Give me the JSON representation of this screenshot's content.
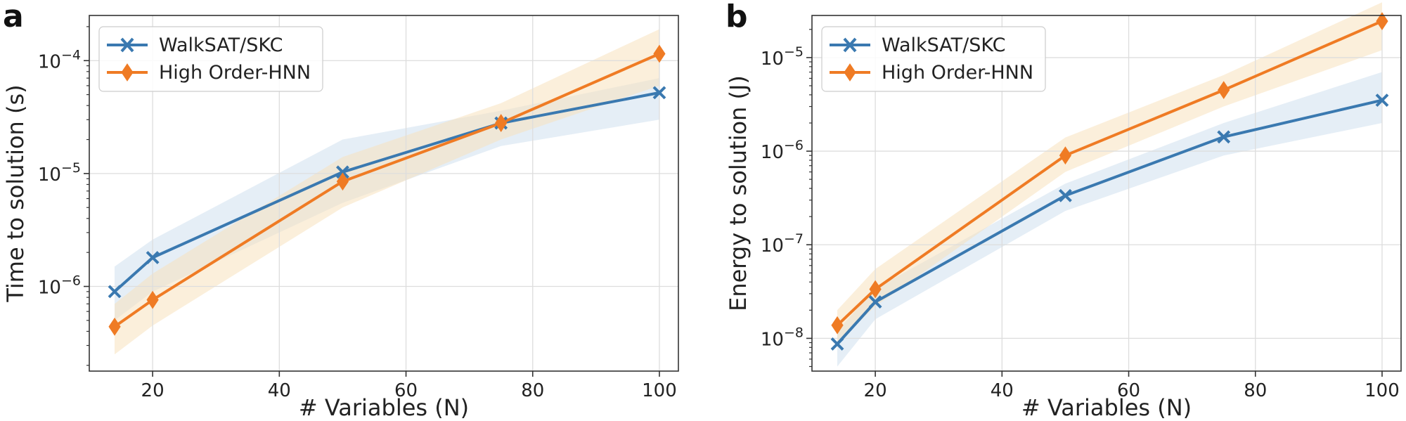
{
  "chart_data": [
    {
      "type": "line",
      "panel_label": "a",
      "title": "",
      "xlabel": "# Variables (N)",
      "ylabel": "Time to solution (s)",
      "yscale": "log",
      "xlim": [
        10,
        103
      ],
      "ylim_log10": [
        -6.75,
        -3.6
      ],
      "x_ticks": [
        20,
        40,
        60,
        80,
        100
      ],
      "x_tick_labels": [
        "20",
        "40",
        "60",
        "80",
        "100"
      ],
      "y_ticks_log10": [
        -6,
        -5,
        -4
      ],
      "y_tick_labels": [
        "10",
        "10",
        "10"
      ],
      "y_tick_exponents": [
        "−6",
        "−5",
        "−4"
      ],
      "grid": true,
      "legend_position": "top-left",
      "series": [
        {
          "name": "WalkSAT/SKC",
          "color": "#3a79b0",
          "band_color": "#cfe0ee",
          "marker": "x",
          "x": [
            14,
            20,
            50,
            75,
            100
          ],
          "y": [
            9e-07,
            1.8e-06,
            1.03e-05,
            2.8e-05,
            5.2e-05
          ],
          "y_lower": [
            5e-07,
            9e-07,
            5.5e-06,
            1.75e-05,
            3e-05
          ],
          "y_upper": [
            1.5e-06,
            2.6e-06,
            2e-05,
            3.6e-05,
            7e-05
          ]
        },
        {
          "name": "High Order-HNN",
          "color": "#ef7b24",
          "band_color": "#f8e1bd",
          "marker": "diamond",
          "x": [
            14,
            20,
            50,
            75,
            100
          ],
          "y": [
            4.4e-07,
            7.6e-07,
            8.5e-06,
            2.8e-05,
            0.000115
          ],
          "y_lower": [
            2.5e-07,
            4.5e-07,
            5e-06,
            2e-05,
            6e-05
          ],
          "y_upper": [
            7e-07,
            1.3e-06,
            1.4e-05,
            4.2e-05,
            0.00019
          ]
        }
      ]
    },
    {
      "type": "line",
      "panel_label": "b",
      "title": "",
      "xlabel": "# Variables (N)",
      "ylabel": "Energy to solution (J)",
      "yscale": "log",
      "xlim": [
        10,
        103
      ],
      "ylim_log10": [
        -8.35,
        -4.55
      ],
      "x_ticks": [
        20,
        40,
        60,
        80,
        100
      ],
      "x_tick_labels": [
        "20",
        "40",
        "60",
        "80",
        "100"
      ],
      "y_ticks_log10": [
        -8,
        -7,
        -6,
        -5
      ],
      "y_tick_labels": [
        "10",
        "10",
        "10",
        "10"
      ],
      "y_tick_exponents": [
        "−8",
        "−7",
        "−6",
        "−5"
      ],
      "grid": true,
      "legend_position": "top-left",
      "series": [
        {
          "name": "WalkSAT/SKC",
          "color": "#3a79b0",
          "band_color": "#cfe0ee",
          "marker": "x",
          "x": [
            14,
            20,
            50,
            75,
            100
          ],
          "y": [
            8.7e-09,
            2.45e-08,
            3.35e-07,
            1.42e-06,
            3.5e-06
          ],
          "y_lower": [
            5e-09,
            1.6e-08,
            2.3e-07,
            9e-07,
            2e-06
          ],
          "y_upper": [
            1.2e-08,
            3.4e-08,
            4.5e-07,
            2e-06,
            7e-06
          ]
        },
        {
          "name": "High Order-HNN",
          "color": "#ef7b24",
          "band_color": "#f8e1bd",
          "marker": "diamond",
          "x": [
            14,
            20,
            50,
            75,
            100
          ],
          "y": [
            1.38e-08,
            3.35e-08,
            9e-07,
            4.5e-06,
            2.45e-05
          ],
          "y_lower": [
            9e-09,
            2.2e-08,
            6e-07,
            3e-06,
            1.2e-05
          ],
          "y_upper": [
            2e-08,
            5.5e-08,
            1.4e-06,
            6.5e-06,
            3.9e-05
          ]
        }
      ]
    }
  ]
}
